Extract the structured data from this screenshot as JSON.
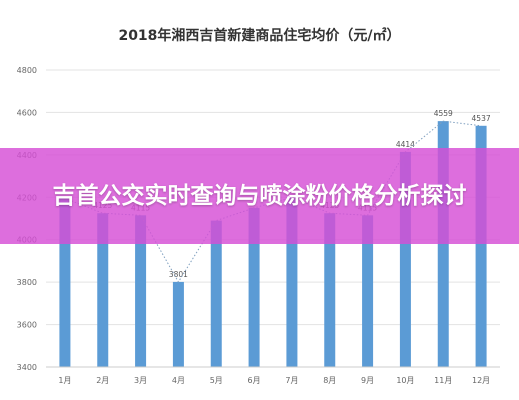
{
  "chart_data": {
    "type": "bar",
    "title": "2018年湘西吉首新建商品住宅均价（元/㎡）",
    "categories": [
      "1月",
      "2月",
      "3月",
      "4月",
      "5月",
      "6月",
      "7月",
      "8月",
      "9月",
      "10月",
      "11月",
      "12月"
    ],
    "values": [
      4195,
      4125,
      4115,
      3801,
      4090,
      4150,
      4200,
      4125,
      4115,
      4414,
      4559,
      4537
    ],
    "data_labels": [
      "",
      "4125",
      "4115",
      "3801",
      "",
      "",
      "",
      "4125",
      "4115",
      "4414",
      "4559",
      "4537"
    ],
    "yticks": [
      "3400",
      "3600",
      "3800",
      "4000",
      "4200",
      "4400",
      "4600",
      "4800"
    ],
    "ylim": [
      3400,
      4800
    ],
    "grid": true,
    "trendline": "dotted",
    "colors": {
      "bar": "#5b9bd5",
      "trend": "#7f9fbf",
      "grid": "#e3e3e3"
    }
  },
  "banner": {
    "text": "吉首公交实时查询与喷涂粉价格分析探讨",
    "color": "#d64ed6"
  }
}
